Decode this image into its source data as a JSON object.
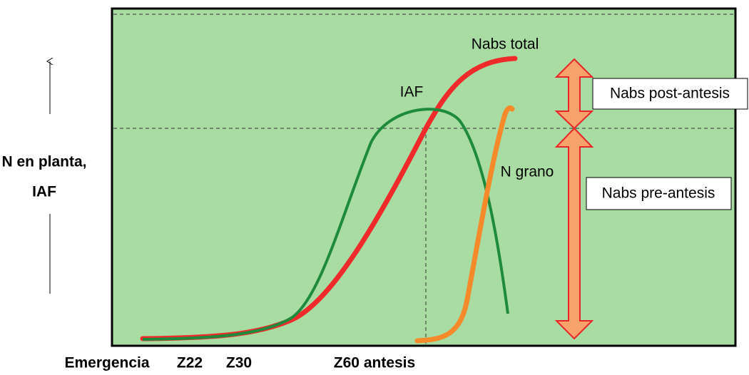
{
  "y_axis_label": {
    "line1": "N en planta,",
    "line2": "IAF"
  },
  "curves": {
    "nabs_total": "Nabs total",
    "iaf": "IAF",
    "n_grano": "N grano"
  },
  "boxes": {
    "post": "Nabs post-antesis",
    "pre": "Nabs pre-antesis"
  },
  "x_labels": {
    "emergencia": "Emergencia",
    "z22": "Z22",
    "z30": "Z30",
    "z60": "Z60 antesis"
  }
}
